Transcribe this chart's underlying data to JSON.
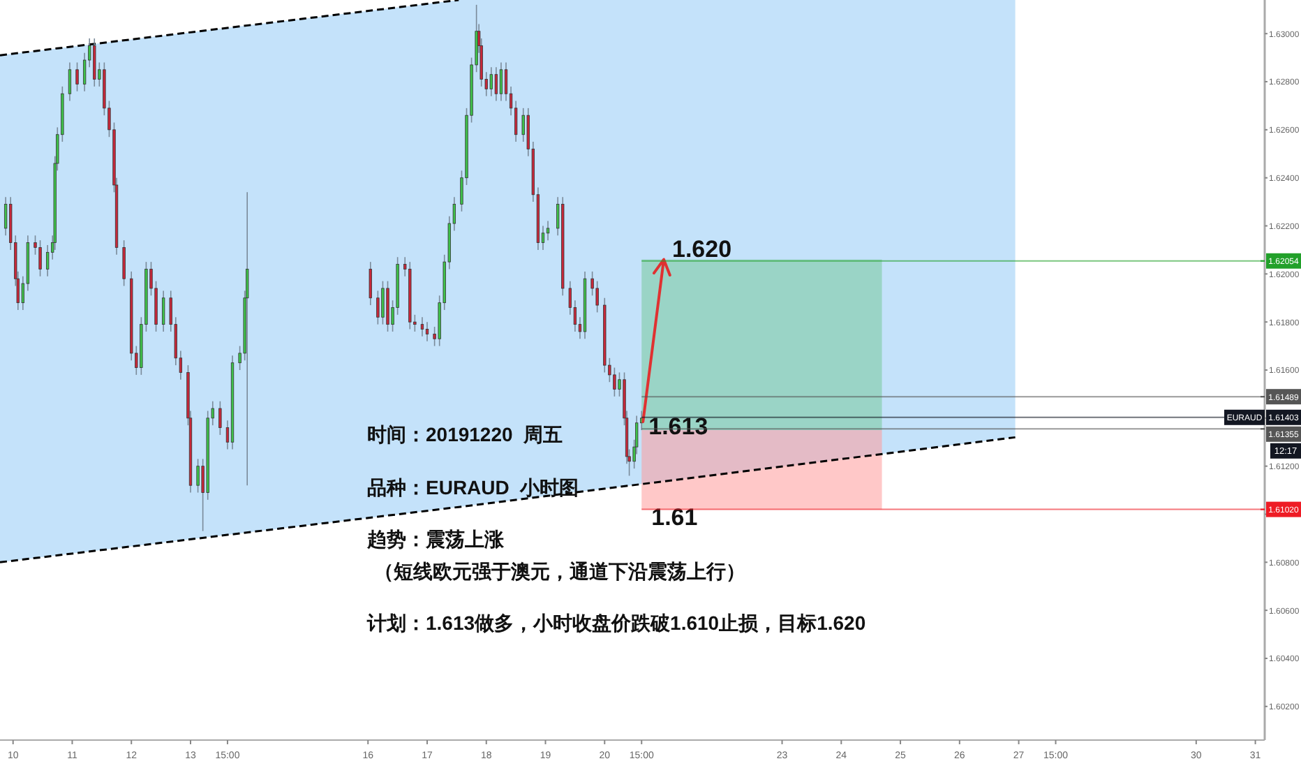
{
  "chart_data": {
    "type": "candlestick",
    "x": [
      "2019-12-09T21:00",
      "2019-12-09T23:00",
      "2019-12-10T01:00",
      "2019-12-10T02:00",
      "2019-12-10T04:00",
      "2019-12-10T06:00",
      "2019-12-10T09:00",
      "2019-12-10T11:00",
      "2019-12-10T14:00",
      "2019-12-10T16:00",
      "2019-12-10T17:00",
      "2019-12-10T18:00",
      "2019-12-10T20:00",
      "2019-12-10T23:00",
      "2019-12-11T02:00",
      "2019-12-11T05:00",
      "2019-12-11T07:00",
      "2019-12-11T09:00",
      "2019-12-11T11:00",
      "2019-12-11T13:00",
      "2019-12-11T15:00",
      "2019-12-11T17:00",
      "2019-12-11T18:00",
      "2019-12-11T21:00",
      "2019-12-12T00:00",
      "2019-12-12T02:00",
      "2019-12-12T04:00",
      "2019-12-12T06:00",
      "2019-12-12T08:00",
      "2019-12-12T10:00",
      "2019-12-12T13:00",
      "2019-12-12T16:00",
      "2019-12-12T18:00",
      "2019-12-12T20:00",
      "2019-12-12T23:00",
      "2019-12-13T00:00",
      "2019-12-13T03:00",
      "2019-12-13T05:00",
      "2019-12-13T07:00",
      "2019-12-13T09:00",
      "2019-12-13T12:00",
      "2019-12-13T15:00",
      "2019-12-13T17:00",
      "2019-12-13T20:00",
      "2019-12-13T22:00",
      "2019-12-13T23:00",
      "2019-12-16T01:00",
      "2019-12-16T04:00",
      "2019-12-16T06:00",
      "2019-12-16T08:00",
      "2019-12-16T10:00",
      "2019-12-16T12:00",
      "2019-12-16T15:00",
      "2019-12-16T17:00",
      "2019-12-16T19:00",
      "2019-12-16T22:00",
      "2019-12-17T00:00",
      "2019-12-17T03:00",
      "2019-12-17T05:00",
      "2019-12-17T07:00",
      "2019-12-17T09:00",
      "2019-12-17T11:00",
      "2019-12-17T14:00",
      "2019-12-17T16:00",
      "2019-12-17T18:00",
      "2019-12-17T20:00",
      "2019-12-17T21:00",
      "2019-12-17T22:00",
      "2019-12-18T00:00",
      "2019-12-18T02:00",
      "2019-12-18T04:00",
      "2019-12-18T06:00",
      "2019-12-18T08:00",
      "2019-12-18T10:00",
      "2019-12-18T12:00",
      "2019-12-18T15:00",
      "2019-12-18T17:00",
      "2019-12-18T19:00",
      "2019-12-18T21:00",
      "2019-12-18T23:00",
      "2019-12-19T01:00",
      "2019-12-19T05:00",
      "2019-12-19T07:00",
      "2019-12-19T10:00",
      "2019-12-19T12:00",
      "2019-12-19T14:00",
      "2019-12-19T16:00",
      "2019-12-19T19:00",
      "2019-12-19T21:00",
      "2019-12-20T00:00",
      "2019-12-20T02:00",
      "2019-12-20T04:00",
      "2019-12-20T06:00",
      "2019-12-20T08:00",
      "2019-12-20T09:00",
      "2019-12-20T10:00",
      "2019-12-20T12:00",
      "2019-12-20T13:00",
      "2019-12-20T15:00"
    ],
    "ohlc": [
      [
        1.6219,
        1.6232,
        1.6216,
        1.6229
      ],
      [
        1.6229,
        1.6232,
        1.621,
        1.6213
      ],
      [
        1.6213,
        1.6216,
        1.6195,
        1.6198
      ],
      [
        1.6198,
        1.6201,
        1.6185,
        1.6188
      ],
      [
        1.6188,
        1.6199,
        1.6185,
        1.6196
      ],
      [
        1.6196,
        1.6216,
        1.6193,
        1.6213
      ],
      [
        1.6213,
        1.6216,
        1.6208,
        1.6211
      ],
      [
        1.6211,
        1.6214,
        1.6199,
        1.6202
      ],
      [
        1.6202,
        1.6212,
        1.6199,
        1.6209
      ],
      [
        1.6209,
        1.6216,
        1.6206,
        1.6213
      ],
      [
        1.6213,
        1.6249,
        1.621,
        1.6246
      ],
      [
        1.6246,
        1.6261,
        1.6243,
        1.6258
      ],
      [
        1.6258,
        1.6278,
        1.6255,
        1.6275
      ],
      [
        1.6275,
        1.6288,
        1.6272,
        1.6285
      ],
      [
        1.6285,
        1.6288,
        1.6276,
        1.6279
      ],
      [
        1.6279,
        1.6292,
        1.6276,
        1.6289
      ],
      [
        1.6289,
        1.6298,
        1.6286,
        1.6295
      ],
      [
        1.6295,
        1.6298,
        1.6278,
        1.6281
      ],
      [
        1.6281,
        1.6288,
        1.6278,
        1.6285
      ],
      [
        1.6285,
        1.6288,
        1.6266,
        1.6269
      ],
      [
        1.6269,
        1.6272,
        1.6257,
        1.626
      ],
      [
        1.626,
        1.6263,
        1.6234,
        1.6237
      ],
      [
        1.6237,
        1.624,
        1.6208,
        1.6211
      ],
      [
        1.6211,
        1.6214,
        1.6195,
        1.6198
      ],
      [
        1.6198,
        1.6201,
        1.6164,
        1.6167
      ],
      [
        1.6167,
        1.617,
        1.6158,
        1.6161
      ],
      [
        1.6161,
        1.6182,
        1.6158,
        1.6179
      ],
      [
        1.6179,
        1.6205,
        1.6176,
        1.6202
      ],
      [
        1.6202,
        1.6205,
        1.6191,
        1.6194
      ],
      [
        1.6194,
        1.6197,
        1.6176,
        1.6179
      ],
      [
        1.6179,
        1.6193,
        1.6176,
        1.619
      ],
      [
        1.619,
        1.6193,
        1.6176,
        1.6179
      ],
      [
        1.6179,
        1.6182,
        1.6162,
        1.6165
      ],
      [
        1.6165,
        1.6168,
        1.6156,
        1.6159
      ],
      [
        1.6159,
        1.6162,
        1.6137,
        1.614
      ],
      [
        1.614,
        1.6143,
        1.6109,
        1.6112
      ],
      [
        1.6112,
        1.6123,
        1.6109,
        1.612
      ],
      [
        1.612,
        1.6123,
        1.6093,
        1.6109
      ],
      [
        1.6109,
        1.6143,
        1.6106,
        1.614
      ],
      [
        1.614,
        1.6147,
        1.6137,
        1.6144
      ],
      [
        1.6144,
        1.6147,
        1.6133,
        1.6136
      ],
      [
        1.6136,
        1.6139,
        1.6127,
        1.613
      ],
      [
        1.613,
        1.6166,
        1.6127,
        1.6163
      ],
      [
        1.6163,
        1.617,
        1.616,
        1.6167
      ],
      [
        1.6167,
        1.6193,
        1.6164,
        1.619
      ],
      [
        1.619,
        1.6234,
        1.6112,
        1.6202
      ],
      [
        1.6202,
        1.6205,
        1.6187,
        1.619
      ],
      [
        1.619,
        1.6193,
        1.6179,
        1.6182
      ],
      [
        1.6182,
        1.6197,
        1.6179,
        1.6194
      ],
      [
        1.6194,
        1.6197,
        1.6176,
        1.6179
      ],
      [
        1.6179,
        1.6189,
        1.6176,
        1.6186
      ],
      [
        1.6186,
        1.6207,
        1.6183,
        1.6204
      ],
      [
        1.6204,
        1.6207,
        1.6199,
        1.6202
      ],
      [
        1.6202,
        1.6205,
        1.6177,
        1.618
      ],
      [
        1.618,
        1.6183,
        1.6176,
        1.6179
      ],
      [
        1.6179,
        1.6182,
        1.6174,
        1.6177
      ],
      [
        1.6177,
        1.618,
        1.6172,
        1.6175
      ],
      [
        1.6175,
        1.6178,
        1.617,
        1.6173
      ],
      [
        1.6173,
        1.6191,
        1.617,
        1.6188
      ],
      [
        1.6188,
        1.6208,
        1.6185,
        1.6205
      ],
      [
        1.6205,
        1.6224,
        1.6202,
        1.6221
      ],
      [
        1.6221,
        1.6232,
        1.6218,
        1.6229
      ],
      [
        1.6229,
        1.6243,
        1.6226,
        1.624
      ],
      [
        1.624,
        1.6269,
        1.6237,
        1.6266
      ],
      [
        1.6266,
        1.629,
        1.6263,
        1.6287
      ],
      [
        1.6287,
        1.6312,
        1.6284,
        1.6301
      ],
      [
        1.6301,
        1.6304,
        1.6292,
        1.6295
      ],
      [
        1.6295,
        1.6298,
        1.6278,
        1.6281
      ],
      [
        1.6281,
        1.6284,
        1.6274,
        1.6277
      ],
      [
        1.6277,
        1.6286,
        1.6274,
        1.6283
      ],
      [
        1.6283,
        1.6286,
        1.6272,
        1.6275
      ],
      [
        1.6275,
        1.6288,
        1.6272,
        1.6285
      ],
      [
        1.6285,
        1.6288,
        1.6272,
        1.6275
      ],
      [
        1.6275,
        1.6278,
        1.6266,
        1.6269
      ],
      [
        1.6269,
        1.6272,
        1.6255,
        1.6258
      ],
      [
        1.6258,
        1.6269,
        1.6255,
        1.6266
      ],
      [
        1.6266,
        1.6269,
        1.6249,
        1.6252
      ],
      [
        1.6252,
        1.6255,
        1.623,
        1.6233
      ],
      [
        1.6233,
        1.6236,
        1.621,
        1.6213
      ],
      [
        1.6213,
        1.622,
        1.621,
        1.6217
      ],
      [
        1.6217,
        1.6222,
        1.6214,
        1.6219
      ],
      [
        1.6219,
        1.6232,
        1.6216,
        1.6229
      ],
      [
        1.6229,
        1.6232,
        1.6191,
        1.6194
      ],
      [
        1.6194,
        1.6197,
        1.6183,
        1.6186
      ],
      [
        1.6186,
        1.6189,
        1.6176,
        1.6179
      ],
      [
        1.6179,
        1.6182,
        1.6173,
        1.6176
      ],
      [
        1.6176,
        1.6201,
        1.6173,
        1.6198
      ],
      [
        1.6198,
        1.6201,
        1.6191,
        1.6194
      ],
      [
        1.6194,
        1.6197,
        1.6184,
        1.6187
      ],
      [
        1.6187,
        1.619,
        1.6159,
        1.6162
      ],
      [
        1.6162,
        1.6165,
        1.6155,
        1.6158
      ],
      [
        1.6158,
        1.6161,
        1.6149,
        1.6152
      ],
      [
        1.6152,
        1.6159,
        1.6149,
        1.6156
      ],
      [
        1.6156,
        1.6159,
        1.6137,
        1.614
      ],
      [
        1.614,
        1.6143,
        1.6121,
        1.6124
      ],
      [
        1.6124,
        1.6127,
        1.6116,
        1.6122
      ],
      [
        1.6122,
        1.6131,
        1.6119,
        1.6128
      ],
      [
        1.6128,
        1.6141,
        1.6125,
        1.6138
      ],
      [
        1.6138,
        1.6143,
        1.6135,
        1.614
      ]
    ],
    "xlim": [
      "2019-12-09T18:42",
      "2019-12-31T03:48"
    ],
    "ylim": [
      1.6006,
      1.6314
    ],
    "xticks": [
      {
        "value": "2019-12-10",
        "label": "10"
      },
      {
        "value": "2019-12-11",
        "label": "11"
      },
      {
        "value": "2019-12-12",
        "label": "12"
      },
      {
        "value": "2019-12-13",
        "label": "13"
      },
      {
        "value": "2019-12-13T15:00",
        "label": "15:00"
      },
      {
        "value": "2019-12-16",
        "label": "16"
      },
      {
        "value": "2019-12-17",
        "label": "17"
      },
      {
        "value": "2019-12-18",
        "label": "18"
      },
      {
        "value": "2019-12-19",
        "label": "19"
      },
      {
        "value": "2019-12-20",
        "label": "20"
      },
      {
        "value": "2019-12-20T15:00",
        "label": "15:00"
      },
      {
        "value": "2019-12-23",
        "label": "23"
      },
      {
        "value": "2019-12-24",
        "label": "24"
      },
      {
        "value": "2019-12-25",
        "label": "25"
      },
      {
        "value": "2019-12-26",
        "label": "26"
      },
      {
        "value": "2019-12-27",
        "label": "27"
      },
      {
        "value": "2019-12-27T15:00",
        "label": "15:00"
      },
      {
        "value": "2019-12-30",
        "label": "30"
      },
      {
        "value": "2019-12-31",
        "label": "31"
      }
    ],
    "yticks": [
      {
        "value": 1.602,
        "label": "1.60200"
      },
      {
        "value": 1.604,
        "label": "1.60400"
      },
      {
        "value": 1.606,
        "label": "1.60600"
      },
      {
        "value": 1.608,
        "label": "1.60800"
      },
      {
        "value": 1.61,
        "label": null
      },
      {
        "value": 1.612,
        "label": "1.61200"
      },
      {
        "value": 1.614,
        "label": null
      },
      {
        "value": 1.616,
        "label": "1.61600"
      },
      {
        "value": 1.618,
        "label": "1.61800"
      },
      {
        "value": 1.62,
        "label": "1.62000"
      },
      {
        "value": 1.622,
        "label": "1.62200"
      },
      {
        "value": 1.624,
        "label": "1.62400"
      },
      {
        "value": 1.626,
        "label": "1.62600"
      },
      {
        "value": 1.628,
        "label": "1.62800"
      },
      {
        "value": 1.63,
        "label": "1.63000"
      }
    ],
    "series": [
      {
        "type": "line",
        "color": "#000000",
        "line_style": "dashed",
        "x": [
          "2019-12-09T18:42",
          "2019-12-17T12:48"
        ],
        "values": [
          1.6291,
          1.6314
        ]
      },
      {
        "type": "line",
        "color": "#000000",
        "line_style": "dashed",
        "x": [
          "2019-12-09T18:42",
          "2019-12-17T12:48",
          "2019-12-26T22:36"
        ],
        "values": [
          1.608,
          1.6103,
          1.6132
        ],
        "lower": [
          1.608,
          1.6103,
          1.6132
        ],
        "upper": [
          1.6291,
          1.6314,
          1.6314
        ]
      },
      {
        "type": "bar",
        "color": "#78c89a",
        "x": [
          "2019-12-22T15:45"
        ],
        "base": [
          1.6135
        ],
        "values": [
          0.0071
        ]
      },
      {
        "type": "bar",
        "color": "#ff9a9a",
        "x": [
          "2019-12-22T15:45"
        ],
        "base": [
          1.6102
        ],
        "values": [
          0.0033
        ]
      }
    ],
    "ref_lines": [
      {
        "axis": "y",
        "value": 1.62054,
        "label": "1.62054",
        "color": "#22a02a"
      },
      {
        "axis": "y",
        "value": 1.61489,
        "label": "1.61489",
        "color": "#555555"
      },
      {
        "axis": "y",
        "value": 1.61403,
        "label": "1.61403",
        "color": "#131722"
      },
      {
        "axis": "y",
        "value": 1.61355,
        "label": "1.61355",
        "color": "#555555"
      },
      {
        "axis": "y",
        "value": 1.6102,
        "label": "1.61020",
        "color": "#ee1c25"
      }
    ],
    "annotations": [
      "时间：20191220  周五",
      "品种：EURAUD  小时图",
      "趋势：震荡上涨",
      "（短线欧元强于澳元，通道下沿震荡上行）",
      "计划：1.613做多，小时收盘价跌破1.610止损，目标1.620",
      {
        "text": "1.620",
        "x": "2019-12-21T00:00",
        "y": 1.6206
      },
      {
        "text": "1.613",
        "x": "2019-12-20T15:00",
        "y": 1.6135
      },
      "1.61",
      "EURAUD",
      "12:17"
    ]
  }
}
